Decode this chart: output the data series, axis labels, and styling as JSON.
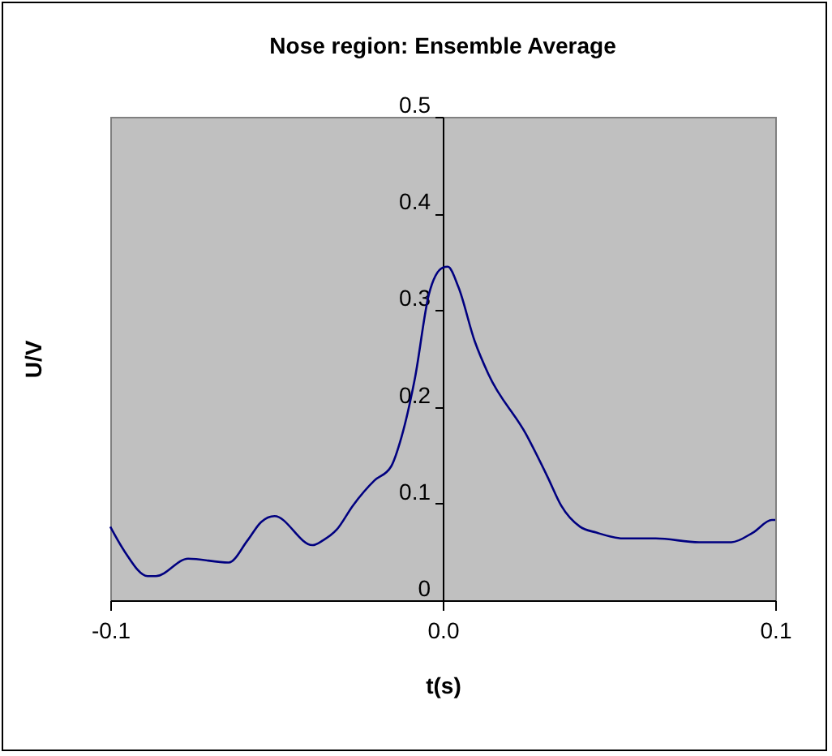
{
  "chart_data": {
    "type": "line",
    "title": "Nose region: Ensemble Average",
    "xlabel": "t(s)",
    "ylabel": "U/V",
    "x": [
      -0.1,
      -0.0956,
      -0.0888,
      -0.0863,
      -0.0766,
      -0.0644,
      -0.0587,
      -0.0546,
      -0.0506,
      -0.0392,
      -0.036,
      -0.0319,
      -0.027,
      -0.0205,
      -0.0156,
      -0.0124,
      -0.0083,
      -0.0042,
      0.0,
      0.0015,
      0.0047,
      0.0096,
      0.0137,
      0.025,
      0.0316,
      0.0356,
      0.0413,
      0.0462,
      0.0543,
      0.0641,
      0.0771,
      0.0868,
      0.0933,
      0.099,
      0.1
    ],
    "series": [
      {
        "color": "#000080",
        "values": [
          0.076,
          0.05,
          0.025,
          0.025,
          0.043,
          0.039,
          0.062,
          0.081,
          0.087,
          0.057,
          0.062,
          0.073,
          0.098,
          0.124,
          0.138,
          0.169,
          0.231,
          0.316,
          0.344,
          0.345,
          0.324,
          0.268,
          0.234,
          0.172,
          0.127,
          0.098,
          0.076,
          0.07,
          0.064,
          0.064,
          0.06,
          0.06,
          0.07,
          0.083,
          0.083
        ]
      }
    ],
    "xlim": [
      -0.1,
      0.1
    ],
    "xticks": [
      {
        "value": -0.1,
        "label": "-0.1"
      },
      {
        "value": 0.0,
        "label": "0.0"
      },
      {
        "value": 0.1,
        "label": "0.1"
      }
    ],
    "ylim": [
      0,
      0.5
    ],
    "yticks": [
      0,
      0.1,
      0.2,
      0.3,
      0.4,
      0.5
    ],
    "grid": false,
    "marker": "none",
    "line_style": "solid"
  }
}
